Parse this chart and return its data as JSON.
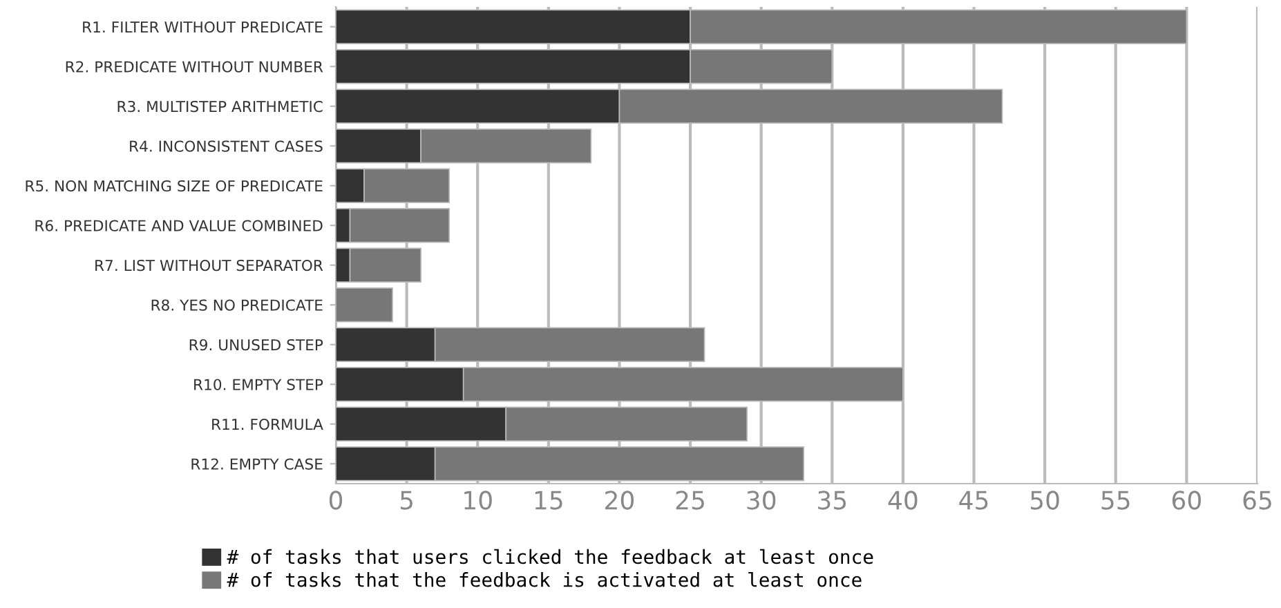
{
  "chart_data": {
    "type": "bar",
    "orientation": "horizontal",
    "stacked": true,
    "categories": [
      "R1. FILTER WITHOUT PREDICATE",
      "R2. PREDICATE WITHOUT NUMBER",
      "R3. MULTISTEP ARITHMETIC",
      "R4. INCONSISTENT CASES",
      "R5. NON MATCHING SIZE OF PREDICATE",
      "R6. PREDICATE AND VALUE COMBINED",
      "R7. LIST WITHOUT SEPARATOR",
      "R8. YES NO PREDICATE",
      "R9. UNUSED STEP",
      "R10. EMPTY STEP",
      "R11. FORMULA",
      "R12. EMPTY CASE"
    ],
    "series": [
      {
        "name": "# of tasks that users clicked the feedback at least once",
        "color": "#333333",
        "values": [
          25,
          25,
          20,
          6,
          2,
          1,
          1,
          0,
          7,
          9,
          12,
          7
        ]
      },
      {
        "name": "# of tasks that the feedback is activated at least once",
        "color": "#777777",
        "values": [
          35,
          10,
          27,
          12,
          6,
          7,
          5,
          4,
          19,
          31,
          17,
          26
        ]
      }
    ],
    "xlim": [
      0,
      65
    ],
    "xticks": [
      0,
      5,
      10,
      15,
      20,
      25,
      30,
      35,
      40,
      45,
      50,
      55,
      60,
      65
    ],
    "grid": "x",
    "legend": "bottom"
  }
}
